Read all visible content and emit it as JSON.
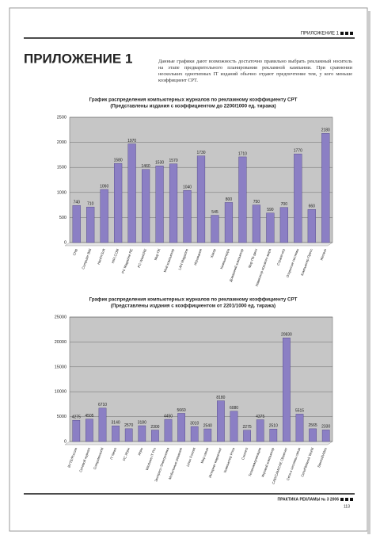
{
  "header": {
    "section": "ПРИЛОЖЕНИЕ 1"
  },
  "title": "ПРИЛОЖЕНИЕ 1",
  "intro": "Данные графики дают возможность достаточно правильно выбрать рекламный носитель на этапе предварительного планирования рекламной кампании. При сравнении нескольких однотипных IT изданий обычно отдают предпочтение тем, у кого меньше коэффициент CPT.",
  "chart_data": [
    {
      "type": "bar",
      "title": "График распределения компьютерных журналов по рекламному коэффициенту CPT",
      "subtitle": "(Представлены издания с коэффициентом до 2200/1000 ед. тиража)",
      "categories": [
        "Chip",
        "Computer Bild",
        "Hard'n'Soft",
        "HIFI.COM",
        "PC Magazine RE",
        "PC Week/RE",
        "Мир ПК",
        "Мой компьютер",
        "LAN Magazine",
        "Игромания",
        "Хакер",
        "Компьютерра",
        "Домашний компьютер",
        "Мир ПК-диск",
        "Навигатор игрового мира",
        "Страна игр",
        "Открытые системы",
        "Компьютер-Пресс",
        "Железо"
      ],
      "values": [
        740,
        710,
        1060,
        1580,
        1970,
        1460,
        1530,
        1570,
        1040,
        1730,
        545,
        800,
        1710,
        750,
        590,
        700,
        1770,
        660,
        2180
      ],
      "color": "#8b7fc4",
      "ylim": [
        0,
        2500
      ],
      "yticks": [
        0,
        500,
        1000,
        1500,
        2000,
        2500
      ],
      "grid": true
    },
    {
      "type": "bar",
      "title": "График распределения компьютерных журналов по рекламному коэффициенту CPT",
      "subtitle": "(Представлены издания с коэффициентом от 2201/1000 ед. тиража)",
      "categories": [
        "BYTE/Россия",
        "Сетевой журнал",
        "Computerworld",
        "IT News",
        "PC Игры",
        "Игры",
        "Windows IT Pro",
        "Экспресс-Электроника",
        "Мобильные решения",
        "Linux Format",
        "Мир связи",
        "Интернет маркетинг",
        "Компьютер Price",
        "Connect",
        "Телекоммуникации",
        "Игровой компьютер",
        "CAD/CAM/CAE Observer",
        "Сети и системы связи",
        "Сети/Network World",
        "Stereo&Video"
      ],
      "values": [
        4275,
        4505,
        6710,
        3140,
        2570,
        3180,
        2300,
        4450,
        5660,
        3010,
        2540,
        8180,
        6080,
        2275,
        4375,
        2510,
        20830,
        5515,
        2565,
        2330
      ],
      "color": "#8b7fc4",
      "ylim": [
        0,
        25000
      ],
      "yticks": [
        0,
        5000,
        10000,
        15000,
        20000,
        25000
      ],
      "grid": true
    }
  ],
  "footer": {
    "magazine": "ПРАКТИКА РЕКЛАМЫ № 3 2006",
    "page": "113"
  }
}
